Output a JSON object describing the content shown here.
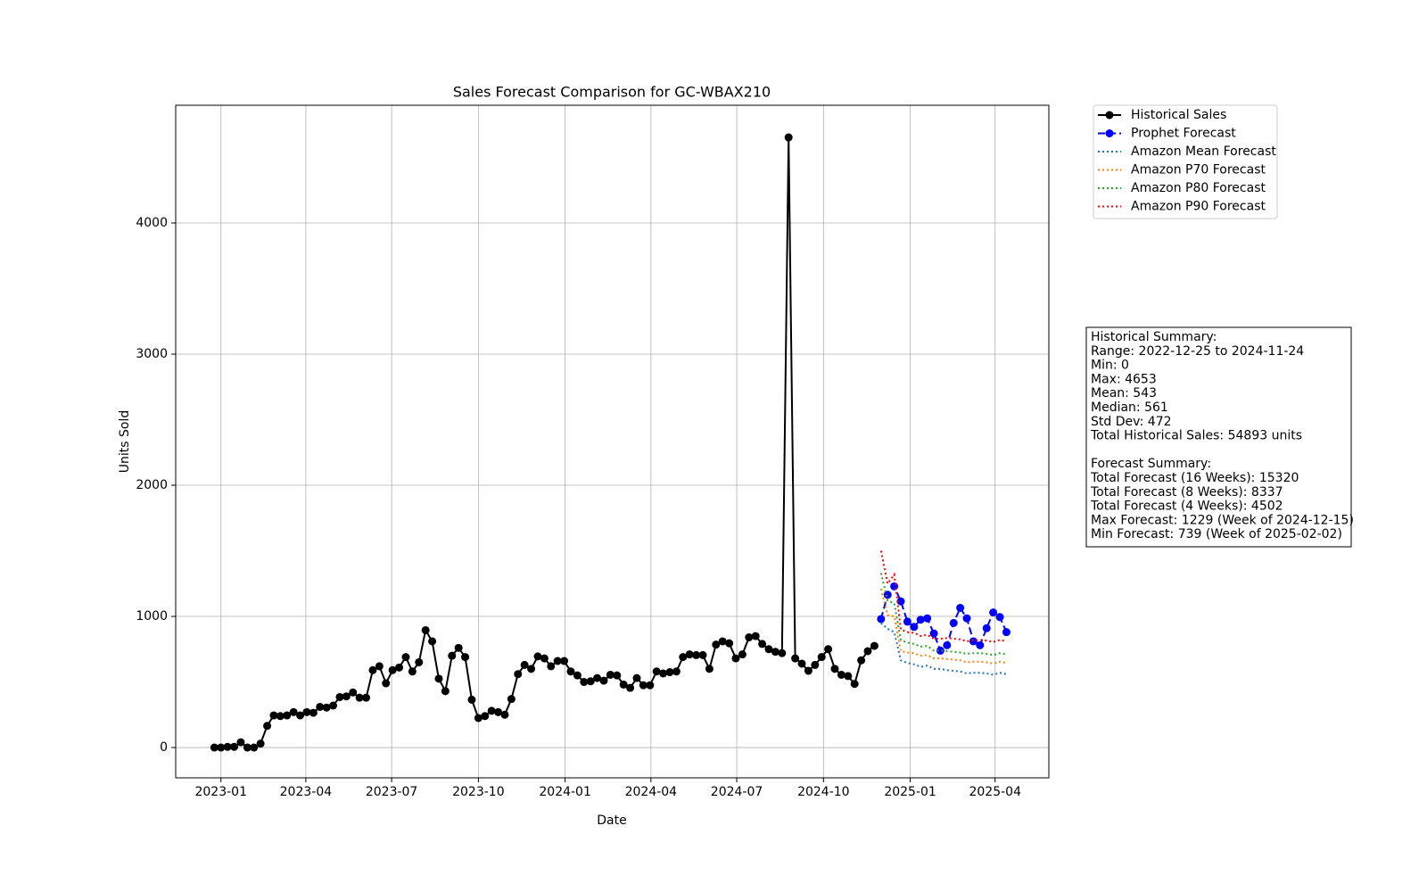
{
  "chart_data": {
    "type": "line",
    "title": "Sales Forecast Comparison for GC-WBAX210",
    "x_label": "Date",
    "y_label": "Units Sold",
    "xlim": [
      "2022-11-14",
      "2025-05-28"
    ],
    "ylim": [
      -231,
      4898
    ],
    "xticks": [
      {
        "value": "2023-01-01",
        "label": "2023-01"
      },
      {
        "value": "2023-04-01",
        "label": "2023-04"
      },
      {
        "value": "2023-07-01",
        "label": "2023-07"
      },
      {
        "value": "2023-10-01",
        "label": "2023-10"
      },
      {
        "value": "2024-01-01",
        "label": "2024-01"
      },
      {
        "value": "2024-04-01",
        "label": "2024-04"
      },
      {
        "value": "2024-07-01",
        "label": "2024-07"
      },
      {
        "value": "2024-10-01",
        "label": "2024-10"
      },
      {
        "value": "2025-01-01",
        "label": "2025-01"
      },
      {
        "value": "2025-04-01",
        "label": "2025-04"
      }
    ],
    "yticks": [
      0,
      1000,
      2000,
      3000,
      4000
    ],
    "grid": true,
    "legend": "outside upper right",
    "series": [
      {
        "name": "Historical Sales",
        "color": "#000000",
        "linestyle": "solid",
        "marker": true,
        "x": [
          "2022-12-25",
          "2023-01-01",
          "2023-01-08",
          "2023-01-15",
          "2023-01-22",
          "2023-01-29",
          "2023-02-05",
          "2023-02-12",
          "2023-02-19",
          "2023-02-26",
          "2023-03-05",
          "2023-03-12",
          "2023-03-19",
          "2023-03-26",
          "2023-04-02",
          "2023-04-09",
          "2023-04-16",
          "2023-04-23",
          "2023-04-30",
          "2023-05-07",
          "2023-05-14",
          "2023-05-21",
          "2023-05-28",
          "2023-06-04",
          "2023-06-11",
          "2023-06-18",
          "2023-06-25",
          "2023-07-02",
          "2023-07-09",
          "2023-07-16",
          "2023-07-23",
          "2023-07-30",
          "2023-08-06",
          "2023-08-13",
          "2023-08-20",
          "2023-08-27",
          "2023-09-03",
          "2023-09-10",
          "2023-09-17",
          "2023-09-24",
          "2023-10-01",
          "2023-10-08",
          "2023-10-15",
          "2023-10-22",
          "2023-10-29",
          "2023-11-05",
          "2023-11-12",
          "2023-11-19",
          "2023-11-26",
          "2023-12-03",
          "2023-12-10",
          "2023-12-17",
          "2023-12-24",
          "2023-12-31",
          "2024-01-07",
          "2024-01-14",
          "2024-01-21",
          "2024-01-28",
          "2024-02-04",
          "2024-02-11",
          "2024-02-18",
          "2024-02-25",
          "2024-03-03",
          "2024-03-10",
          "2024-03-17",
          "2024-03-24",
          "2024-03-31",
          "2024-04-07",
          "2024-04-14",
          "2024-04-21",
          "2024-04-28",
          "2024-05-05",
          "2024-05-12",
          "2024-05-19",
          "2024-05-26",
          "2024-06-02",
          "2024-06-09",
          "2024-06-16",
          "2024-06-23",
          "2024-06-30",
          "2024-07-07",
          "2024-07-14",
          "2024-07-21",
          "2024-07-28",
          "2024-08-04",
          "2024-08-11",
          "2024-08-18",
          "2024-08-25",
          "2024-09-01",
          "2024-09-08",
          "2024-09-15",
          "2024-09-22",
          "2024-09-29",
          "2024-10-06",
          "2024-10-13",
          "2024-10-20",
          "2024-10-27",
          "2024-11-03",
          "2024-11-10",
          "2024-11-17",
          "2024-11-24"
        ],
        "values": [
          0,
          0,
          5,
          5,
          40,
          0,
          0,
          30,
          165,
          245,
          240,
          245,
          270,
          245,
          270,
          265,
          310,
          305,
          320,
          385,
          390,
          420,
          380,
          380,
          590,
          620,
          490,
          590,
          610,
          690,
          580,
          650,
          895,
          810,
          525,
          430,
          700,
          760,
          690,
          365,
          225,
          240,
          280,
          270,
          250,
          370,
          560,
          630,
          600,
          695,
          680,
          620,
          660,
          660,
          580,
          550,
          500,
          505,
          530,
          510,
          555,
          550,
          480,
          455,
          530,
          475,
          475,
          580,
          565,
          575,
          580,
          690,
          710,
          705,
          705,
          600,
          785,
          810,
          795,
          680,
          710,
          840,
          850,
          790,
          750,
          730,
          720,
          4653,
          680,
          640,
          585,
          630,
          690,
          750,
          600,
          555,
          545,
          485,
          665,
          735,
          775
        ]
      },
      {
        "name": "Prophet Forecast",
        "color": "#0000ff",
        "linestyle": "dashed",
        "marker": true,
        "x": [
          "2024-12-01",
          "2024-12-08",
          "2024-12-15",
          "2024-12-22",
          "2024-12-29",
          "2025-01-05",
          "2025-01-12",
          "2025-01-19",
          "2025-01-26",
          "2025-02-02",
          "2025-02-09",
          "2025-02-16",
          "2025-02-23",
          "2025-03-02",
          "2025-03-09",
          "2025-03-16",
          "2025-03-23",
          "2025-03-30",
          "2025-04-06",
          "2025-04-13"
        ],
        "values": [
          980,
          1165,
          1229,
          1115,
          960,
          920,
          975,
          985,
          870,
          739,
          780,
          950,
          1065,
          985,
          810,
          780,
          910,
          1030,
          995,
          880
        ]
      },
      {
        "name": "Amazon Mean Forecast",
        "color": "#1f77b4",
        "linestyle": "dotted",
        "marker": false,
        "x": [
          "2024-12-01",
          "2024-12-08",
          "2024-12-15",
          "2024-12-22",
          "2024-12-29",
          "2025-01-05",
          "2025-01-12",
          "2025-01-19",
          "2025-01-26",
          "2025-02-02",
          "2025-02-09",
          "2025-02-16",
          "2025-02-23",
          "2025-03-02",
          "2025-03-09",
          "2025-03-16",
          "2025-03-23",
          "2025-03-30",
          "2025-04-06",
          "2025-04-13"
        ],
        "values": [
          950,
          905,
          880,
          665,
          645,
          635,
          615,
          625,
          600,
          600,
          590,
          585,
          580,
          565,
          570,
          570,
          565,
          555,
          570,
          560
        ]
      },
      {
        "name": "Amazon P70 Forecast",
        "color": "#ff7f0e",
        "linestyle": "dotted",
        "marker": false,
        "x": [
          "2024-12-01",
          "2024-12-08",
          "2024-12-15",
          "2024-12-22",
          "2024-12-29",
          "2025-01-05",
          "2025-01-12",
          "2025-01-19",
          "2025-01-26",
          "2025-02-02",
          "2025-02-09",
          "2025-02-16",
          "2025-02-23",
          "2025-03-02",
          "2025-03-09",
          "2025-03-16",
          "2025-03-23",
          "2025-03-30",
          "2025-04-06",
          "2025-04-13"
        ],
        "values": [
          1210,
          1010,
          1000,
          735,
          725,
          720,
          700,
          705,
          680,
          680,
          675,
          670,
          665,
          650,
          655,
          655,
          650,
          640,
          655,
          645
        ]
      },
      {
        "name": "Amazon P80 Forecast",
        "color": "#2ca02c",
        "linestyle": "dotted",
        "marker": false,
        "x": [
          "2024-12-01",
          "2024-12-08",
          "2024-12-15",
          "2024-12-22",
          "2024-12-29",
          "2025-01-05",
          "2025-01-12",
          "2025-01-19",
          "2025-01-26",
          "2025-02-02",
          "2025-02-09",
          "2025-02-16",
          "2025-02-23",
          "2025-03-02",
          "2025-03-09",
          "2025-03-16",
          "2025-03-23",
          "2025-03-30",
          "2025-04-06",
          "2025-04-13"
        ],
        "values": [
          1330,
          1120,
          1100,
          820,
          800,
          790,
          770,
          775,
          740,
          740,
          735,
          730,
          725,
          715,
          720,
          720,
          715,
          705,
          720,
          710
        ]
      },
      {
        "name": "Amazon P90 Forecast",
        "color": "#ff0000",
        "linestyle": "dotted",
        "marker": false,
        "x": [
          "2024-12-01",
          "2024-12-08",
          "2024-12-15",
          "2024-12-22",
          "2024-12-29",
          "2025-01-05",
          "2025-01-12",
          "2025-01-19",
          "2025-01-26",
          "2025-02-02",
          "2025-02-09",
          "2025-02-16",
          "2025-02-23",
          "2025-03-02",
          "2025-03-09",
          "2025-03-16",
          "2025-03-23",
          "2025-03-30",
          "2025-04-06",
          "2025-04-13"
        ],
        "values": [
          1500,
          1250,
          1320,
          900,
          880,
          875,
          850,
          860,
          830,
          830,
          835,
          830,
          825,
          810,
          820,
          820,
          815,
          805,
          820,
          810
        ]
      }
    ],
    "historical_summary": [
      "Historical Summary:",
      "Range: 2022-12-25 to 2024-11-24",
      "Min: 0",
      "Max: 4653",
      "Mean: 543",
      "Median: 561",
      "Std Dev: 472",
      "Total Historical Sales: 54893 units"
    ],
    "forecast_summary": [
      "Forecast Summary:",
      "Total Forecast (16 Weeks): 15320",
      "Total Forecast (8 Weeks): 8337",
      "Total Forecast (4 Weeks): 4502",
      "Max Forecast: 1229 (Week of 2024-12-15)",
      "Min Forecast: 739 (Week of 2025-02-02)"
    ]
  }
}
